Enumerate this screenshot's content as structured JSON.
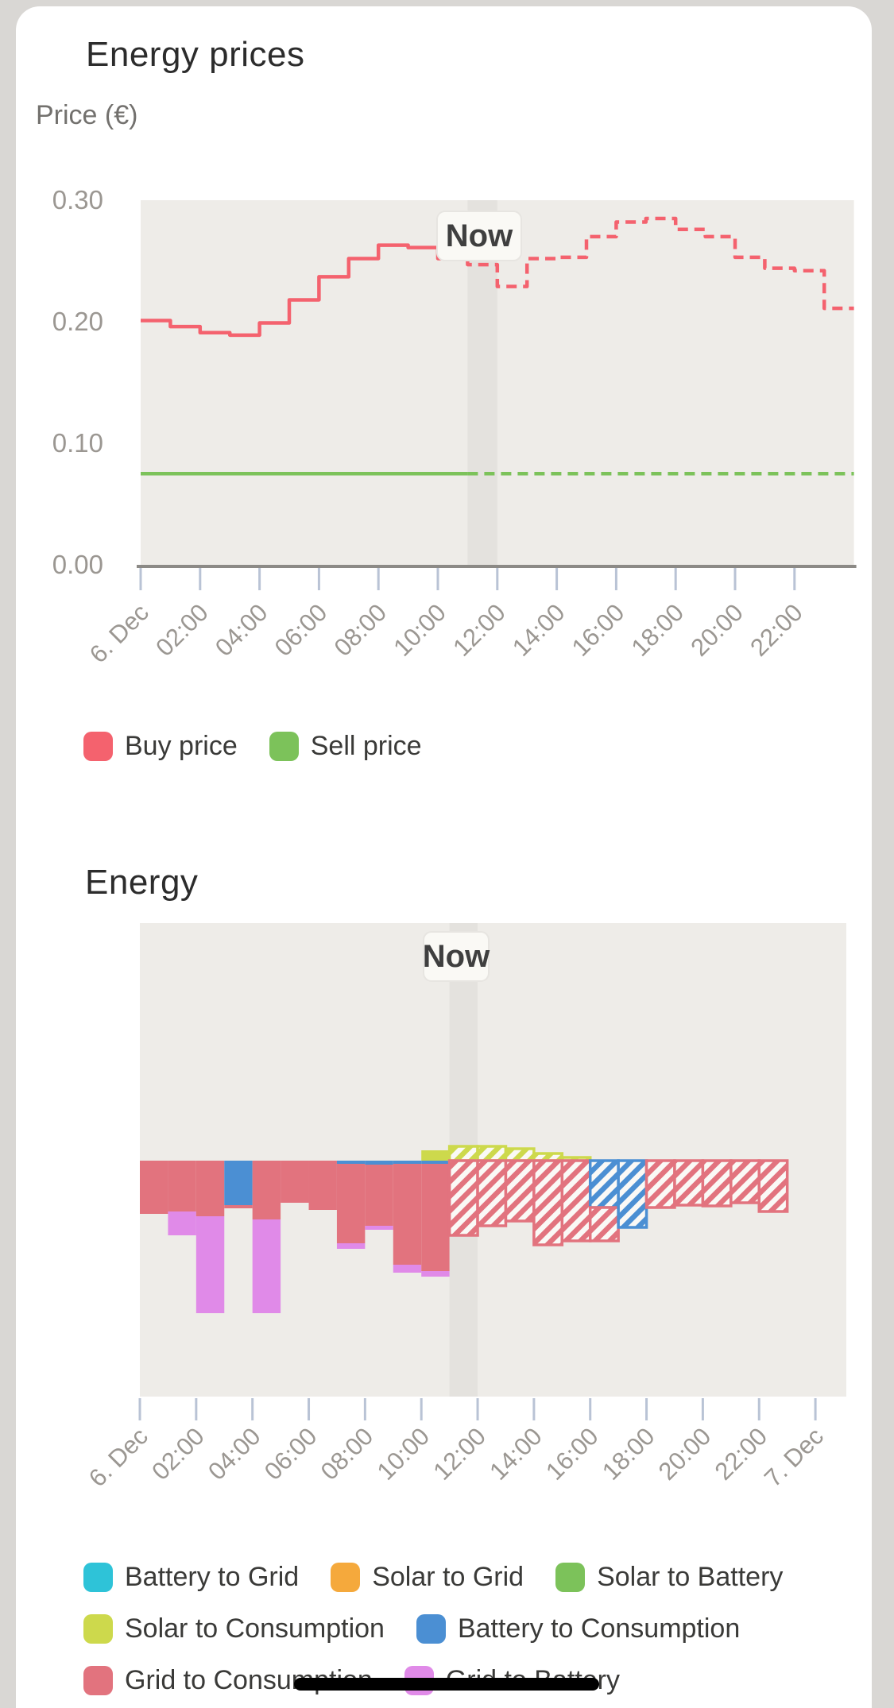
{
  "price_section": {
    "title": "Energy prices",
    "axis_label": "Price (€)",
    "now_label": "Now",
    "legend": [
      {
        "label": "Buy price",
        "color": "#f4626e"
      },
      {
        "label": "Sell price",
        "color": "#7cc25a"
      }
    ]
  },
  "energy_section": {
    "title": "Energy",
    "now_label": "Now",
    "legend": [
      {
        "label": "Battery to Grid",
        "color": "#2ec3d8"
      },
      {
        "label": "Solar to Grid",
        "color": "#f5a93c"
      },
      {
        "label": "Solar to Battery",
        "color": "#7cc25a"
      },
      {
        "label": "Solar to Consumption",
        "color": "#cdd94c"
      },
      {
        "label": "Battery to Consumption",
        "color": "#4b8fd3"
      },
      {
        "label": "Grid to Consumption",
        "color": "#e2737e"
      },
      {
        "label": "Grid to Battery",
        "color": "#e08ae8"
      }
    ]
  },
  "chart_data": [
    {
      "type": "line",
      "style": "step",
      "title": "Energy prices",
      "ylabel": "Price (€)",
      "ylim": [
        0.0,
        0.3
      ],
      "y_ticks": [
        {
          "value": 0.3,
          "label": "0.30"
        },
        {
          "value": 0.2,
          "label": "0.20"
        },
        {
          "value": 0.1,
          "label": "0.10"
        },
        {
          "value": 0.0,
          "label": "0.00"
        }
      ],
      "x_ticks": [
        "6. Dec",
        "02:00",
        "04:00",
        "06:00",
        "08:00",
        "10:00",
        "12:00",
        "14:00",
        "16:00",
        "18:00",
        "20:00",
        "22:00"
      ],
      "hours": [
        0,
        1,
        2,
        3,
        4,
        5,
        6,
        7,
        8,
        9,
        10,
        11,
        12,
        13,
        14,
        15,
        16,
        17,
        18,
        19,
        20,
        21,
        22,
        23
      ],
      "now_hour": 11,
      "forecast_from_hour": 11,
      "now_label": "Now",
      "grid": false,
      "legend_position": "bottom",
      "series": [
        {
          "name": "Buy price",
          "color": "#f4626e",
          "values": [
            0.201,
            0.196,
            0.191,
            0.189,
            0.199,
            0.218,
            0.237,
            0.252,
            0.263,
            0.261,
            0.252,
            0.247,
            0.229,
            0.252,
            0.253,
            0.27,
            0.282,
            0.285,
            0.276,
            0.27,
            0.253,
            0.244,
            0.242,
            0.211
          ]
        },
        {
          "name": "Sell price",
          "color": "#7cc25a",
          "constant_value": 0.075
        }
      ]
    },
    {
      "type": "bar",
      "stacked": true,
      "title": "Energy",
      "x_ticks": [
        "6. Dec",
        "02:00",
        "04:00",
        "06:00",
        "08:00",
        "10:00",
        "12:00",
        "14:00",
        "16:00",
        "18:00",
        "20:00",
        "22:00",
        "7. Dec"
      ],
      "hours": [
        0,
        1,
        2,
        3,
        4,
        5,
        6,
        7,
        8,
        9,
        10,
        11,
        12,
        13,
        14,
        15,
        16,
        17,
        18,
        19,
        20,
        21,
        22,
        23
      ],
      "now_hour": 11,
      "forecast_from_hour": 11,
      "now_label": "Now",
      "ylabel": "",
      "y_axis_labels_visible": false,
      "values_unit": "relative (chart px, no y-axis labels shown)",
      "series": [
        {
          "name": "Battery to Grid",
          "color": "#2ec3d8",
          "direction": "up",
          "values": [
            0,
            0,
            0,
            0,
            0,
            0,
            0,
            0,
            0,
            0,
            0,
            0,
            0,
            0,
            0,
            0,
            0,
            0,
            0,
            0,
            0,
            0,
            0,
            0
          ]
        },
        {
          "name": "Solar to Grid",
          "color": "#f5a93c",
          "direction": "up",
          "values": [
            0,
            0,
            0,
            0,
            0,
            0,
            0,
            0,
            0,
            0,
            0,
            0,
            0,
            0,
            0,
            0,
            0,
            0,
            0,
            0,
            0,
            0,
            0,
            0
          ]
        },
        {
          "name": "Solar to Battery",
          "color": "#7cc25a",
          "direction": "up",
          "values": [
            0,
            0,
            0,
            0,
            0,
            0,
            0,
            0,
            0,
            0,
            0,
            0,
            0,
            0,
            0,
            0,
            0,
            0,
            0,
            0,
            0,
            0,
            0,
            0
          ]
        },
        {
          "name": "Solar to Consumption",
          "color": "#cdd94c",
          "direction": "up",
          "values": [
            0,
            0,
            0,
            0,
            0,
            0,
            0,
            0,
            0,
            0,
            13,
            18,
            18,
            15,
            9,
            4,
            0,
            0,
            0,
            0,
            0,
            0,
            0,
            0
          ]
        },
        {
          "name": "Battery to Consumption",
          "color": "#4b8fd3",
          "direction": "down",
          "values": [
            0,
            0,
            0,
            56,
            0,
            0,
            0,
            4,
            5,
            4,
            4,
            0,
            0,
            0,
            0,
            0,
            59,
            84,
            0,
            0,
            0,
            0,
            0,
            0
          ]
        },
        {
          "name": "Grid to Consumption",
          "color": "#e2737e",
          "direction": "down",
          "values": [
            67,
            64,
            70,
            4,
            74,
            53,
            62,
            100,
            77,
            127,
            135,
            94,
            82,
            76,
            106,
            101,
            42,
            0,
            59,
            56,
            57,
            53,
            64,
            0
          ]
        },
        {
          "name": "Grid to Battery",
          "color": "#e08ae8",
          "direction": "down",
          "values": [
            0,
            30,
            122,
            0,
            118,
            0,
            0,
            7,
            5,
            10,
            7,
            0,
            0,
            0,
            0,
            0,
            0,
            0,
            0,
            0,
            0,
            0,
            0,
            0
          ]
        }
      ]
    }
  ],
  "colors": {
    "page_background": "#d9d7d4",
    "card_background": "#ffffff",
    "plot_background": "#eeece8",
    "now_band": "#e4e2de",
    "now_label_background": "#faf9f5",
    "now_label_text": "#3f3f3f",
    "axis_line": "#8c8a86",
    "tick_mark": "#b9c3d5",
    "tick_label": "#9b9792",
    "title_text": "#2c2c2c",
    "hatch_gap": "#faf9f6",
    "home_indicator": "#000000"
  }
}
